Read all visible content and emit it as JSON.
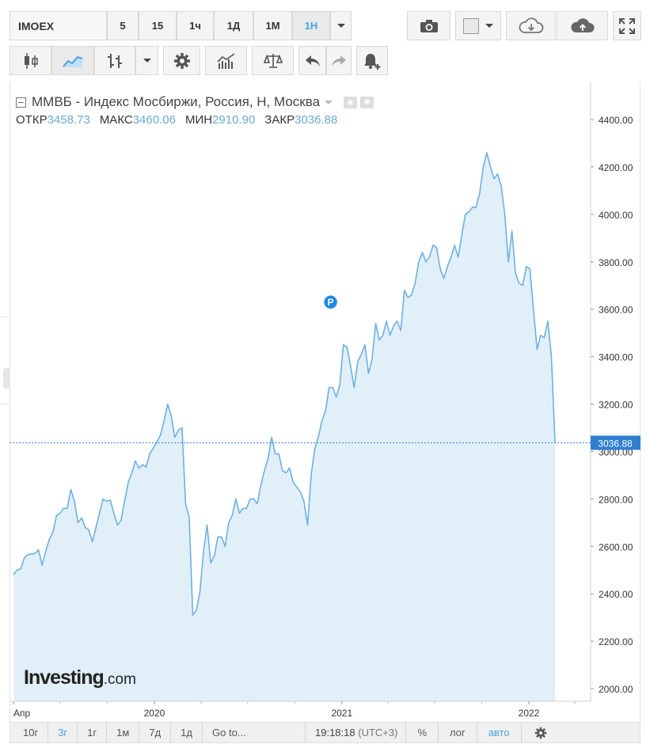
{
  "toolbar": {
    "symbol": "IMOEX",
    "intervals": [
      "5",
      "15",
      "1ч",
      "1Д",
      "1М",
      "1Н"
    ],
    "active_interval": "1Н"
  },
  "chart_tools": {
    "icons": [
      "camera-icon",
      "color-swatch-icon",
      "cloud-download-icon",
      "cloud-upload-icon",
      "fullscreen-icon",
      "candlestick-icon",
      "line-chart-icon",
      "bar-chart-icon",
      "gear-icon",
      "indicators-icon",
      "compare-icon",
      "undo-icon",
      "redo-icon",
      "add-alert-icon"
    ]
  },
  "legend": {
    "title": "ММВБ - Индекс Мосбиржи, Россия, Н, Москва",
    "open_label": "ОТКР",
    "open": "3458.73",
    "high_label": "МАКС",
    "high": "3460.06",
    "low_label": "МИН",
    "low": "2910.90",
    "close_label": "ЗАКР",
    "close": "3036.88"
  },
  "bottom": {
    "ranges": [
      "10г",
      "3г",
      "1г",
      "1м",
      "7д",
      "1д"
    ],
    "active_range": "3г",
    "goto": "Go to...",
    "time": "19:18:18",
    "tz": "(UTC+3)",
    "percent": "%",
    "log": "лог",
    "auto": "авто"
  },
  "logo": {
    "name": "Investing",
    "suffix": ".com"
  },
  "colors": {
    "line": "#6fb0e0",
    "fill": "#e1eff9",
    "accent": "#4aa3df",
    "price_tag": "#2f7fd1",
    "marker": "#1e88e5"
  },
  "chart_data": {
    "type": "area",
    "title": "ММВБ - Индекс Мосбиржи, Россия, Н, Москва",
    "xlabel": "",
    "ylabel": "",
    "x_tick_labels": [
      {
        "label": "Апр",
        "date": "2019-04-01"
      },
      {
        "label": "2020",
        "date": "2020-01-01"
      },
      {
        "label": "2021",
        "date": "2021-01-01"
      },
      {
        "label": "2022",
        "date": "2022-01-01"
      }
    ],
    "y_ticks": [
      2000,
      2200,
      2400,
      2600,
      2800,
      3000,
      3200,
      3400,
      3600,
      3800,
      4000,
      4200,
      4400
    ],
    "ylim": [
      1945,
      4485
    ],
    "xlim": [
      "2019-03-25",
      "2022-07-05"
    ],
    "last_price": 3036.88,
    "marker_label": "P",
    "marker_date": "2020-12-10",
    "marker_value": 3630,
    "grid": false,
    "series": [
      {
        "points": [
          [
            "2019-04-01",
            2480
          ],
          [
            "2019-04-08",
            2500
          ],
          [
            "2019-04-15",
            2505
          ],
          [
            "2019-04-22",
            2550
          ],
          [
            "2019-04-29",
            2565
          ],
          [
            "2019-05-13",
            2570
          ],
          [
            "2019-05-20",
            2585
          ],
          [
            "2019-05-27",
            2520
          ],
          [
            "2019-06-03",
            2580
          ],
          [
            "2019-06-10",
            2630
          ],
          [
            "2019-06-17",
            2660
          ],
          [
            "2019-06-24",
            2730
          ],
          [
            "2019-07-01",
            2740
          ],
          [
            "2019-07-08",
            2760
          ],
          [
            "2019-07-15",
            2760
          ],
          [
            "2019-07-22",
            2840
          ],
          [
            "2019-07-29",
            2790
          ],
          [
            "2019-08-05",
            2700
          ],
          [
            "2019-08-12",
            2720
          ],
          [
            "2019-08-19",
            2680
          ],
          [
            "2019-08-26",
            2670
          ],
          [
            "2019-09-02",
            2620
          ],
          [
            "2019-09-09",
            2680
          ],
          [
            "2019-09-16",
            2740
          ],
          [
            "2019-09-23",
            2800
          ],
          [
            "2019-09-30",
            2790
          ],
          [
            "2019-10-07",
            2795
          ],
          [
            "2019-10-14",
            2740
          ],
          [
            "2019-10-21",
            2690
          ],
          [
            "2019-10-28",
            2710
          ],
          [
            "2019-11-04",
            2790
          ],
          [
            "2019-11-11",
            2870
          ],
          [
            "2019-11-18",
            2910
          ],
          [
            "2019-11-25",
            2960
          ],
          [
            "2019-12-02",
            2930
          ],
          [
            "2019-12-09",
            2945
          ],
          [
            "2019-12-16",
            2935
          ],
          [
            "2019-12-23",
            2990
          ],
          [
            "2020-01-06",
            3040
          ],
          [
            "2020-01-13",
            3070
          ],
          [
            "2020-01-20",
            3130
          ],
          [
            "2020-01-27",
            3200
          ],
          [
            "2020-02-03",
            3150
          ],
          [
            "2020-02-10",
            3060
          ],
          [
            "2020-02-17",
            3090
          ],
          [
            "2020-02-24",
            3100
          ],
          [
            "2020-03-02",
            2780
          ],
          [
            "2020-03-09",
            2720
          ],
          [
            "2020-03-16",
            2310
          ],
          [
            "2020-03-23",
            2330
          ],
          [
            "2020-03-30",
            2410
          ],
          [
            "2020-04-06",
            2580
          ],
          [
            "2020-04-13",
            2690
          ],
          [
            "2020-04-20",
            2530
          ],
          [
            "2020-04-27",
            2560
          ],
          [
            "2020-05-04",
            2640
          ],
          [
            "2020-05-11",
            2640
          ],
          [
            "2020-05-18",
            2600
          ],
          [
            "2020-05-25",
            2700
          ],
          [
            "2020-06-01",
            2730
          ],
          [
            "2020-06-08",
            2800
          ],
          [
            "2020-06-15",
            2740
          ],
          [
            "2020-06-22",
            2760
          ],
          [
            "2020-06-29",
            2760
          ],
          [
            "2020-07-06",
            2800
          ],
          [
            "2020-07-13",
            2800
          ],
          [
            "2020-07-20",
            2780
          ],
          [
            "2020-07-27",
            2860
          ],
          [
            "2020-08-03",
            2920
          ],
          [
            "2020-08-10",
            2970
          ],
          [
            "2020-08-17",
            3060
          ],
          [
            "2020-08-24",
            2990
          ],
          [
            "2020-08-31",
            2990
          ],
          [
            "2020-09-07",
            2920
          ],
          [
            "2020-09-14",
            2910
          ],
          [
            "2020-09-21",
            2930
          ],
          [
            "2020-09-28",
            2870
          ],
          [
            "2020-10-05",
            2850
          ],
          [
            "2020-10-12",
            2830
          ],
          [
            "2020-10-19",
            2790
          ],
          [
            "2020-10-26",
            2690
          ],
          [
            "2020-11-02",
            2900
          ],
          [
            "2020-11-09",
            3010
          ],
          [
            "2020-11-16",
            3060
          ],
          [
            "2020-11-23",
            3130
          ],
          [
            "2020-11-30",
            3170
          ],
          [
            "2020-12-07",
            3270
          ],
          [
            "2020-12-14",
            3270
          ],
          [
            "2020-12-21",
            3230
          ],
          [
            "2020-12-28",
            3280
          ],
          [
            "2021-01-04",
            3450
          ],
          [
            "2021-01-11",
            3440
          ],
          [
            "2021-01-18",
            3360
          ],
          [
            "2021-01-25",
            3270
          ],
          [
            "2021-02-01",
            3380
          ],
          [
            "2021-02-08",
            3410
          ],
          [
            "2021-02-15",
            3450
          ],
          [
            "2021-02-22",
            3330
          ],
          [
            "2021-03-01",
            3390
          ],
          [
            "2021-03-08",
            3540
          ],
          [
            "2021-03-15",
            3470
          ],
          [
            "2021-03-22",
            3490
          ],
          [
            "2021-03-29",
            3550
          ],
          [
            "2021-04-05",
            3490
          ],
          [
            "2021-04-12",
            3530
          ],
          [
            "2021-04-19",
            3550
          ],
          [
            "2021-04-26",
            3510
          ],
          [
            "2021-05-03",
            3680
          ],
          [
            "2021-05-10",
            3650
          ],
          [
            "2021-05-17",
            3660
          ],
          [
            "2021-05-24",
            3710
          ],
          [
            "2021-05-31",
            3800
          ],
          [
            "2021-06-07",
            3840
          ],
          [
            "2021-06-14",
            3800
          ],
          [
            "2021-06-21",
            3820
          ],
          [
            "2021-06-28",
            3870
          ],
          [
            "2021-07-05",
            3860
          ],
          [
            "2021-07-12",
            3770
          ],
          [
            "2021-07-19",
            3730
          ],
          [
            "2021-07-26",
            3780
          ],
          [
            "2021-08-02",
            3820
          ],
          [
            "2021-08-09",
            3870
          ],
          [
            "2021-08-16",
            3820
          ],
          [
            "2021-08-23",
            3910
          ],
          [
            "2021-08-30",
            4000
          ],
          [
            "2021-09-06",
            4010
          ],
          [
            "2021-09-13",
            4030
          ],
          [
            "2021-09-20",
            4030
          ],
          [
            "2021-09-27",
            4090
          ],
          [
            "2021-10-04",
            4200
          ],
          [
            "2021-10-11",
            4260
          ],
          [
            "2021-10-18",
            4200
          ],
          [
            "2021-10-25",
            4150
          ],
          [
            "2021-11-01",
            4170
          ],
          [
            "2021-11-08",
            4120
          ],
          [
            "2021-11-15",
            4000
          ],
          [
            "2021-11-22",
            3800
          ],
          [
            "2021-11-29",
            3930
          ],
          [
            "2021-12-06",
            3750
          ],
          [
            "2021-12-13",
            3710
          ],
          [
            "2021-12-20",
            3700
          ],
          [
            "2021-12-27",
            3780
          ],
          [
            "2022-01-03",
            3770
          ],
          [
            "2022-01-10",
            3600
          ],
          [
            "2022-01-17",
            3430
          ],
          [
            "2022-01-24",
            3490
          ],
          [
            "2022-01-31",
            3480
          ],
          [
            "2022-02-07",
            3550
          ],
          [
            "2022-02-14",
            3400
          ],
          [
            "2022-02-21",
            3036.88
          ]
        ]
      }
    ]
  }
}
